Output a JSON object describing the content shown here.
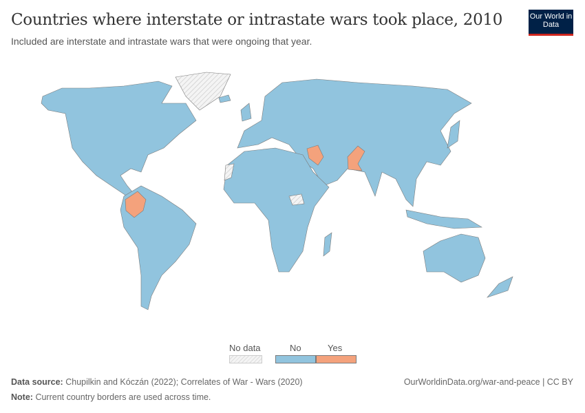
{
  "header": {
    "title": "Countries where interstate or intrastate wars took place, 2010",
    "subtitle": "Included are interstate and intrastate wars that were ongoing that year.",
    "logo": "Our World in Data"
  },
  "legend": {
    "items": [
      {
        "label": "No data",
        "color": "hatched"
      },
      {
        "label": "No",
        "color": "#91c4de"
      },
      {
        "label": "Yes",
        "color": "#f4a27c"
      }
    ]
  },
  "map": {
    "year": "2010",
    "yes_countries": [
      "Colombia",
      "Iraq",
      "Pakistan"
    ],
    "no_data": [
      "Greenland",
      "Western Sahara",
      "South Sudan"
    ]
  },
  "footer": {
    "source_label": "Data source:",
    "source": "Chupilkin and Kóczán (2022); Correlates of War - Wars (2020)",
    "note_label": "Note:",
    "note": "Current country borders are used across time.",
    "url": "OurWorldinData.org/war-and-peace | CC BY"
  }
}
